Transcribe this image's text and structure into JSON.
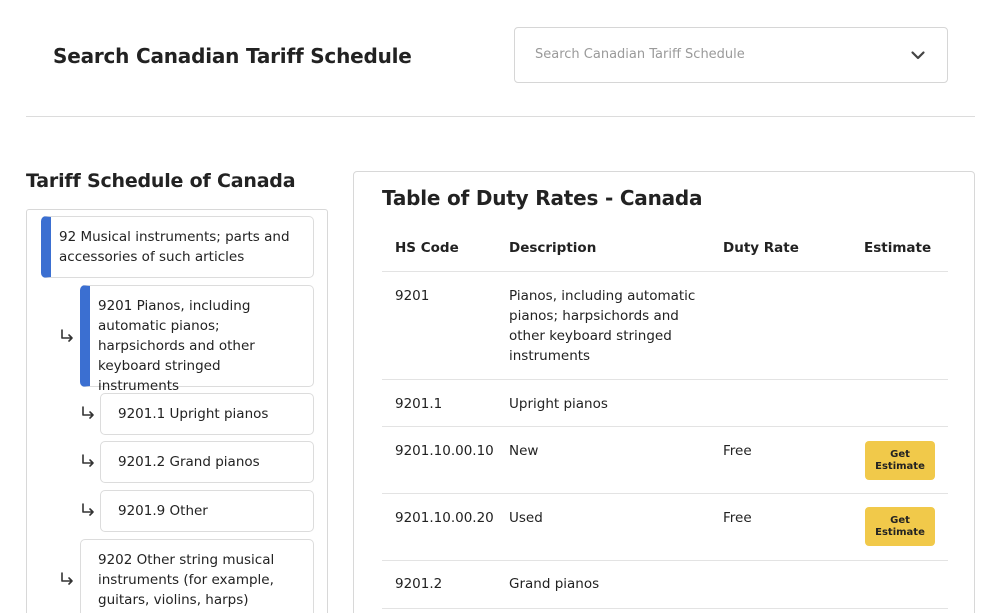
{
  "header": {
    "title": "Search Canadian Tariff Schedule",
    "search_placeholder": "Search Canadian Tariff Schedule",
    "dropdown_icon": "chevron-down-icon"
  },
  "tree": {
    "title": "Tariff Schedule of Canada",
    "nodes": [
      {
        "label": "92 Musical instruments; parts and accessories of such articles",
        "active": true
      },
      {
        "label": "9201 Pianos, including automatic pianos; harpsichords and other keyboard stringed instruments",
        "active": true
      },
      {
        "label": "9201.1 Upright pianos",
        "active": false
      },
      {
        "label": "9201.2 Grand pianos",
        "active": false
      },
      {
        "label": "9201.9 Other",
        "active": false
      },
      {
        "label": "9202 Other string musical instruments (for example, guitars, violins, harps)",
        "active": false
      }
    ],
    "colors": {
      "active_accent": "#3b6fd1"
    }
  },
  "rates": {
    "title": "Table of Duty Rates - Canada",
    "columns": [
      "HS Code",
      "Description",
      "Duty Rate",
      "Estimate"
    ],
    "rows": [
      {
        "code": "9201",
        "description": "Pianos, including automatic pianos; harpsichords and other keyboard stringed instruments",
        "duty": "",
        "estimate": ""
      },
      {
        "code": "9201.1",
        "description": "Upright pianos",
        "duty": "",
        "estimate": ""
      },
      {
        "code": "9201.10.00.10",
        "description": "New",
        "duty": "Free",
        "estimate": "Get Estimate"
      },
      {
        "code": "9201.10.00.20",
        "description": "Used",
        "duty": "Free",
        "estimate": "Get Estimate"
      },
      {
        "code": "9201.2",
        "description": "Grand pianos",
        "duty": "",
        "estimate": ""
      }
    ],
    "colors": {
      "estimate_button": "#f1c94a"
    }
  }
}
